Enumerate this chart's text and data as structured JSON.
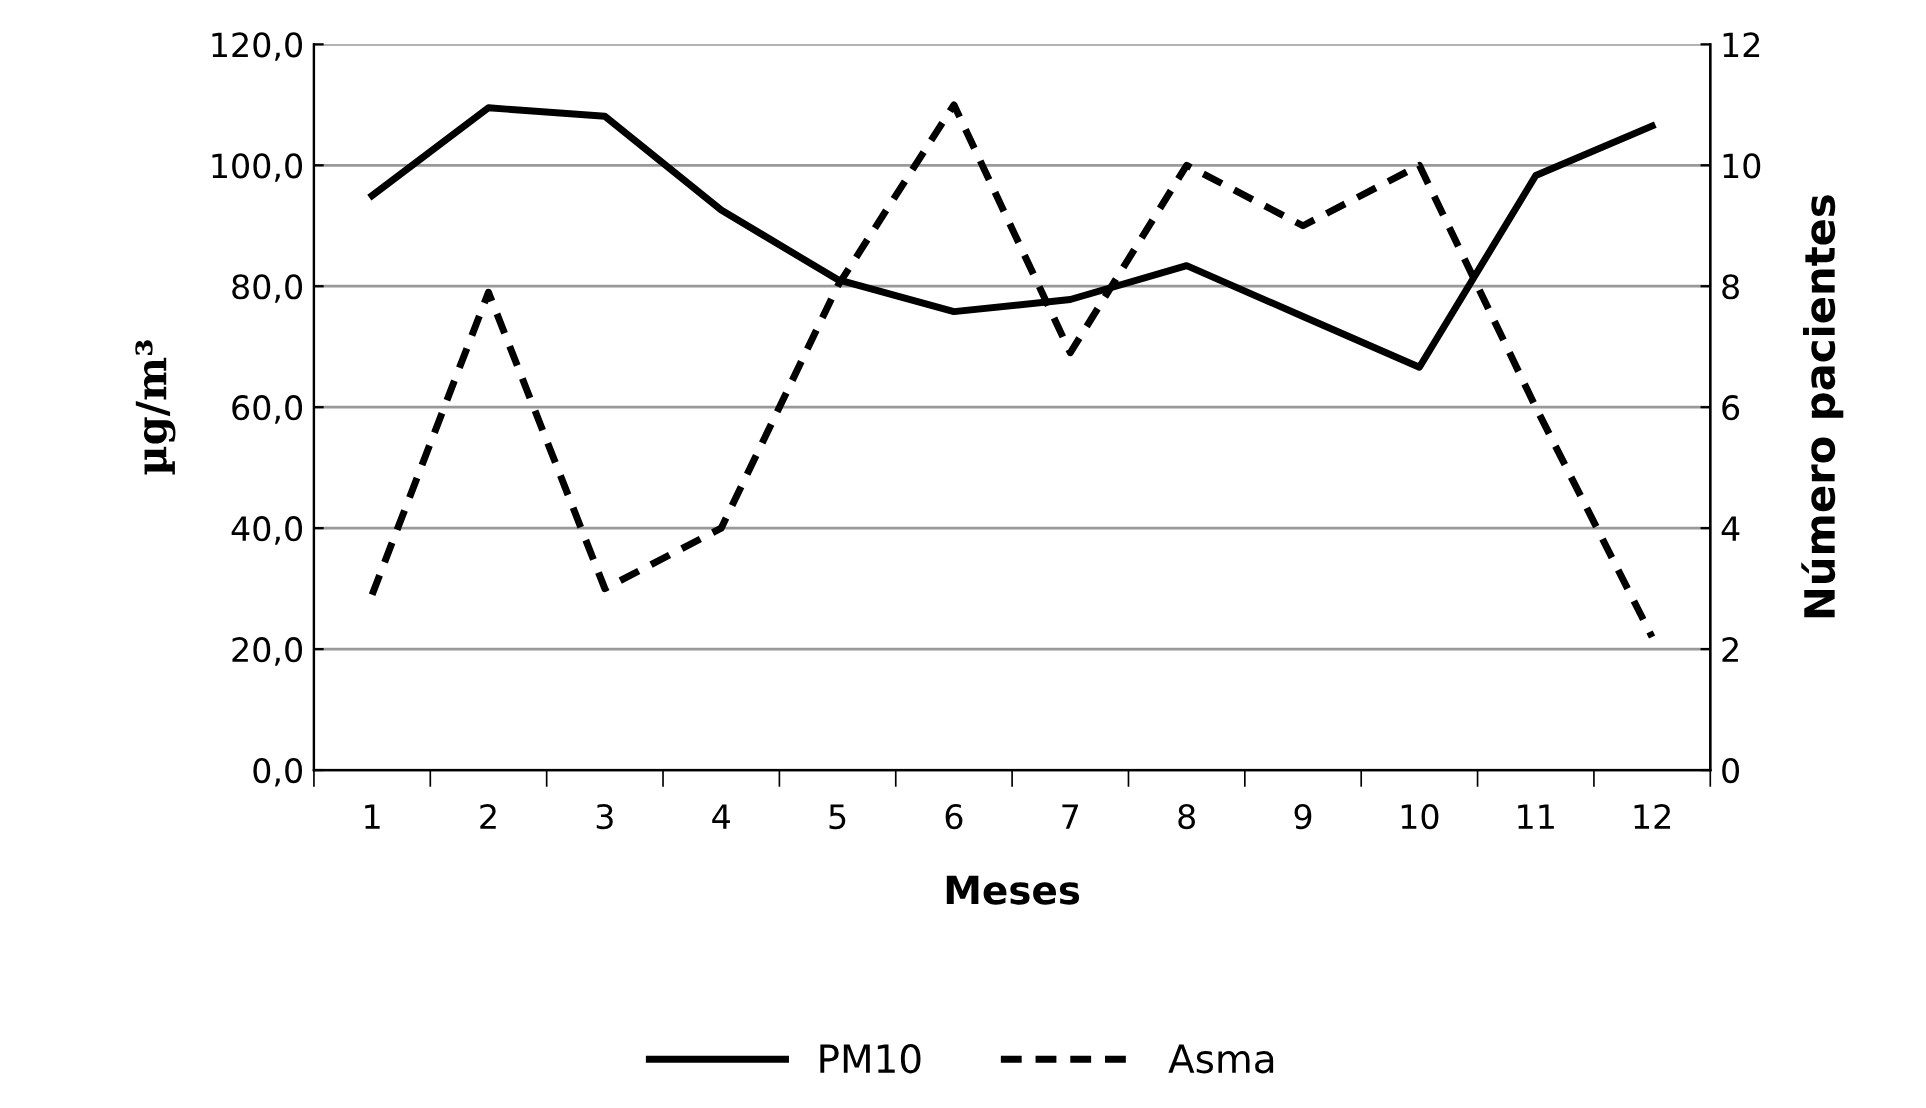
{
  "chart_data": {
    "type": "line",
    "xlabel": "Meses",
    "ylabel": "µg/m³",
    "y2label": "Número pacientes",
    "categories": [
      "1",
      "2",
      "3",
      "4",
      "5",
      "6",
      "7",
      "8",
      "9",
      "10",
      "11",
      "12"
    ],
    "series": [
      {
        "name": "PM10",
        "color": "#000000",
        "line_style": "solid",
        "values": [
          95.0,
          109.5,
          108.1,
          92.6,
          81.1,
          75.8,
          77.8,
          83.4,
          75.0,
          66.6,
          98.3,
          106.5
        ]
      },
      {
        "name": "Asma",
        "color": "#000000",
        "line_style": "dashed",
        "axis": "y2",
        "values": [
          2.9,
          7.9,
          3.0,
          4.0,
          8.0,
          11.0,
          6.9,
          10.0,
          9.0,
          10.0,
          6.0,
          2.2
        ]
      }
    ],
    "ylim": [
      0,
      120
    ],
    "yticks": [
      {
        "value": 0,
        "label": "0,0"
      },
      {
        "value": 20,
        "label": "20,0"
      },
      {
        "value": 40,
        "label": "40,0"
      },
      {
        "value": 60,
        "label": "60,0"
      },
      {
        "value": 80,
        "label": "80,0"
      },
      {
        "value": 100,
        "label": "100,0"
      },
      {
        "value": 120,
        "label": "120,0"
      }
    ],
    "y2lim": [
      0,
      12
    ],
    "y2ticks": [
      0,
      2,
      4,
      6,
      8,
      10,
      12
    ],
    "grid": "y",
    "legend": "bottom"
  }
}
